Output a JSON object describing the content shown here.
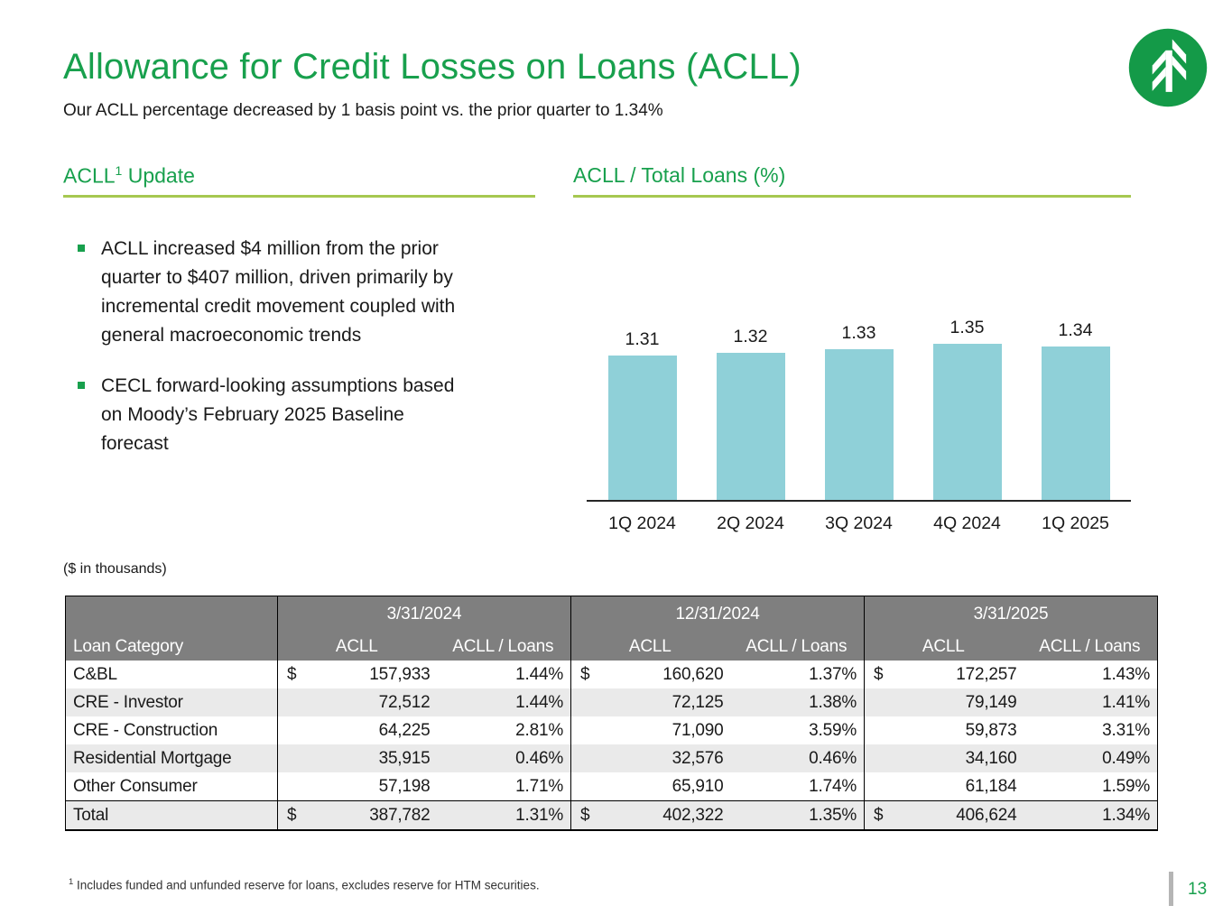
{
  "slide": {
    "title": "Allowance for Credit Losses on Loans (ACLL)",
    "subtitle": "Our ACLL percentage decreased by 1 basis point vs. the prior quarter to 1.34%"
  },
  "colors": {
    "accent_green": "#18A04D",
    "underline_green": "#A6C850",
    "bar_teal": "#8FD0D8",
    "table_header_gray": "#7F7F7F",
    "alt_row_gray": "#EAEAEA"
  },
  "acll_update": {
    "heading_main": "ACLL",
    "heading_sup": "1",
    "heading_rest": " Update",
    "bullets": [
      [
        "ACLL increased $4 million from the prior",
        "quarter to $407 million, driven primarily by",
        "incremental credit movement coupled with",
        "general macroeconomic trends"
      ],
      [
        "CECL forward-looking assumptions based",
        "on Moody’s February 2025 Baseline",
        "forecast"
      ]
    ]
  },
  "chart_section": {
    "heading": "ACLL / Total Loans (%)"
  },
  "chart_data": {
    "type": "bar",
    "title": "ACLL / Total Loans (%)",
    "categories": [
      "1Q 2024",
      "2Q 2024",
      "3Q 2024",
      "4Q 2024",
      "1Q 2025"
    ],
    "values": [
      1.31,
      1.32,
      1.33,
      1.35,
      1.34
    ],
    "data_labels": [
      "1.31",
      "1.32",
      "1.33",
      "1.35",
      "1.34"
    ],
    "xlabel": "",
    "ylabel": "",
    "bar_color": "#8FD0D8",
    "grid": false,
    "legend": false,
    "axis_line": true,
    "ylim_visual": [
      0.58,
      1.35
    ]
  },
  "table": {
    "units_note": "($ in thousands)",
    "row_header": "Loan Category",
    "date_groups": [
      "3/31/2024",
      "12/31/2024",
      "3/31/2025"
    ],
    "col_headers": [
      "ACLL",
      "ACLL / Loans"
    ],
    "rows": [
      {
        "category": "C&BL",
        "dollar": "$",
        "values": [
          [
            "157,933",
            "1.44%"
          ],
          [
            "160,620",
            "1.37%"
          ],
          [
            "172,257",
            "1.43%"
          ]
        ]
      },
      {
        "category": "CRE - Investor",
        "dollar": "",
        "values": [
          [
            "72,512",
            "1.44%"
          ],
          [
            "72,125",
            "1.38%"
          ],
          [
            "79,149",
            "1.41%"
          ]
        ]
      },
      {
        "category": "CRE - Construction",
        "dollar": "",
        "values": [
          [
            "64,225",
            "2.81%"
          ],
          [
            "71,090",
            "3.59%"
          ],
          [
            "59,873",
            "3.31%"
          ]
        ]
      },
      {
        "category": "Residential Mortgage",
        "dollar": "",
        "values": [
          [
            "35,915",
            "0.46%"
          ],
          [
            "32,576",
            "0.46%"
          ],
          [
            "34,160",
            "0.49%"
          ]
        ]
      },
      {
        "category": "Other Consumer",
        "dollar": "",
        "values": [
          [
            "57,198",
            "1.71%"
          ],
          [
            "65,910",
            "1.74%"
          ],
          [
            "61,184",
            "1.59%"
          ]
        ]
      }
    ],
    "total_row": {
      "category": "Total",
      "dollar": "$",
      "values": [
        [
          "387,782",
          "1.31%"
        ],
        [
          "402,322",
          "1.35%"
        ],
        [
          "406,624",
          "1.34%"
        ]
      ]
    }
  },
  "footer": {
    "footnote_sup": "1",
    "footnote_text": " Includes funded and unfunded reserve for loans, excludes reserve for HTM securities.",
    "page_number": "13"
  }
}
